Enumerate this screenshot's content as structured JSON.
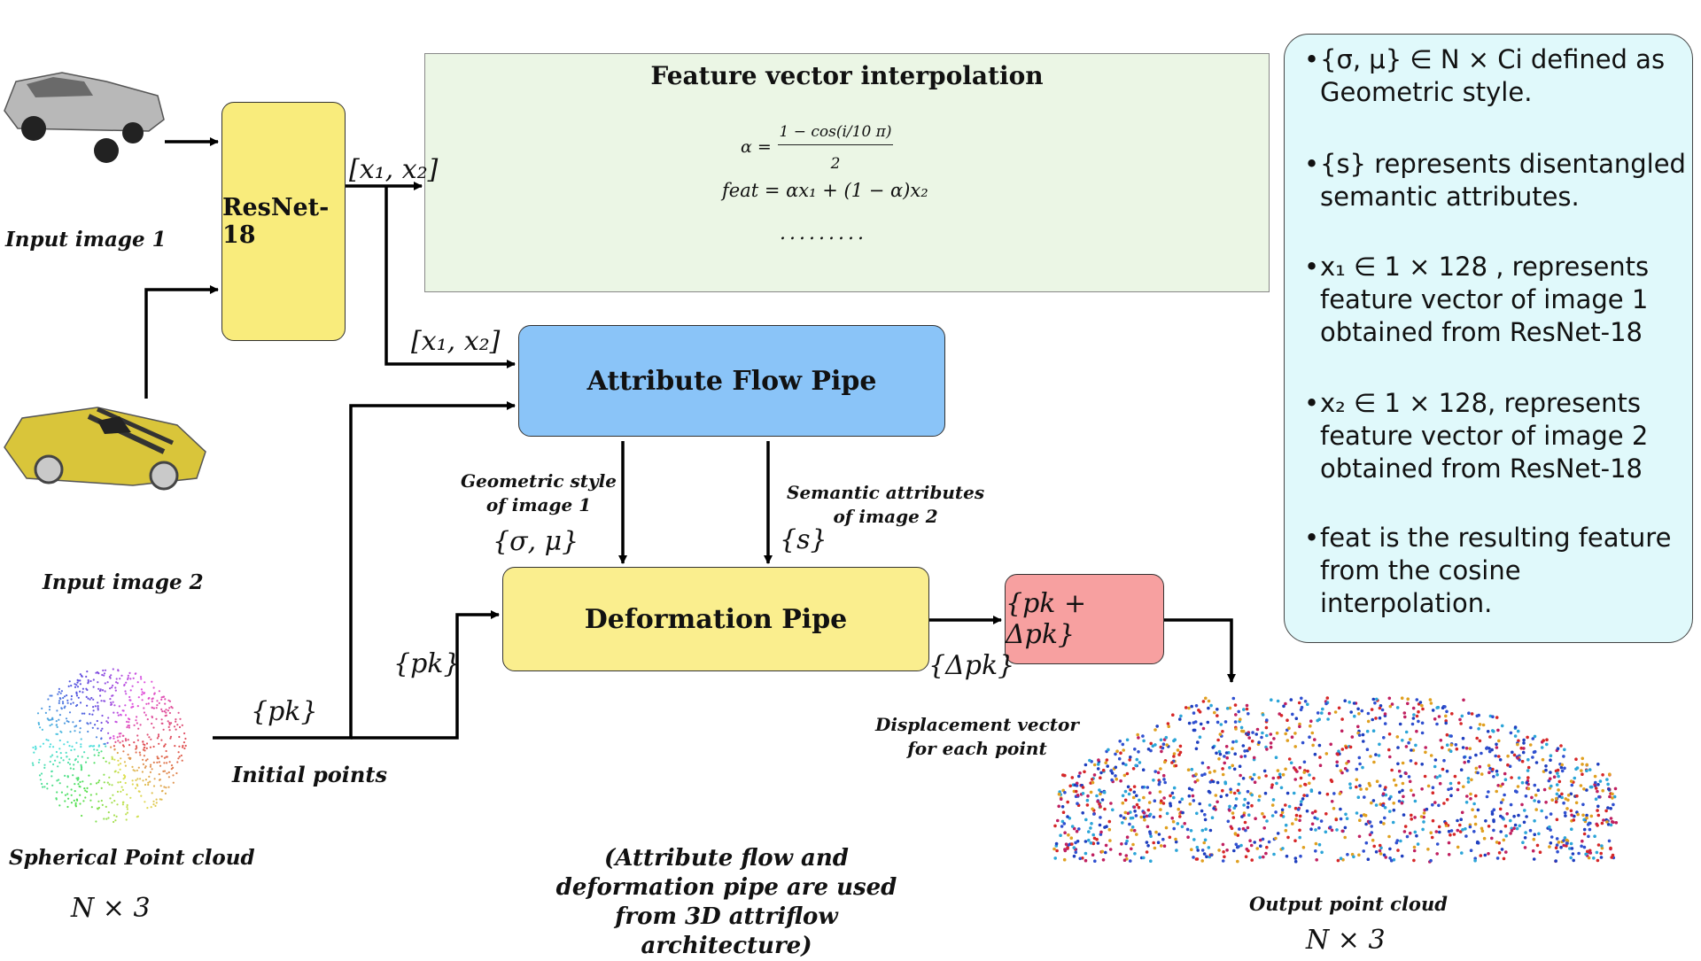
{
  "interpolation": {
    "title": "Feature vector interpolation",
    "alpha_label": "α = ",
    "alpha_numerator": "1 − cos(i/10 π)",
    "alpha_denominator": "2",
    "feat_formula": "feat = αx₁ + (1 − α)x₂",
    "ellipsis": "........."
  },
  "inputs": {
    "image1_caption": "Input image 1",
    "image2_caption": "Input image 2",
    "sphere_caption": "Spherical Point cloud",
    "sphere_dims": "N × 3",
    "initial_points": "Initial points"
  },
  "blocks": {
    "resnet": "ResNet-18",
    "attribute_flow": "Attribute Flow Pipe",
    "deformation": "Deformation Pipe",
    "output_op": "{pk + Δpk}"
  },
  "labels": {
    "x1x2_top": "[x₁, x₂]",
    "x1x2_mid": "[x₁, x₂]",
    "pk_initial": "{pk}",
    "pk_deform": "{pk}",
    "sigma_mu": "{σ, μ}",
    "s": "{s}",
    "delta_pk": "{Δpk}",
    "geometric_style": "Geometric style\nof image 1",
    "semantic_attrs": "Semantic attributes\nof image 2",
    "displacement": "Displacement vector\nfor each point",
    "output_caption": "Output point cloud",
    "output_dims": "N × 3"
  },
  "footnote": "(Attribute flow and deformation pipe are used from 3D attriflow architecture)",
  "legend": [
    "{σ, μ} ∈ N × Ci defined as Geometric style.",
    "{s} represents disentangled semantic attributes.",
    "x₁ ∈ 1 × 128 , represents feature vector of image 1 obtained from ResNet-18",
    "x₂ ∈ 1 × 128, represents feature vector of image 2 obtained from ResNet-18",
    "feat  is the resulting feature from the cosine interpolation."
  ],
  "colors": {
    "resnet": "#f9ec7c",
    "attribute_flow": "#8ac4f8",
    "deformation": "#faee8e",
    "output_op": "#f7a0a0",
    "interp_bg": "#ebf6e5",
    "legend_bg": "#e0f9fb"
  }
}
